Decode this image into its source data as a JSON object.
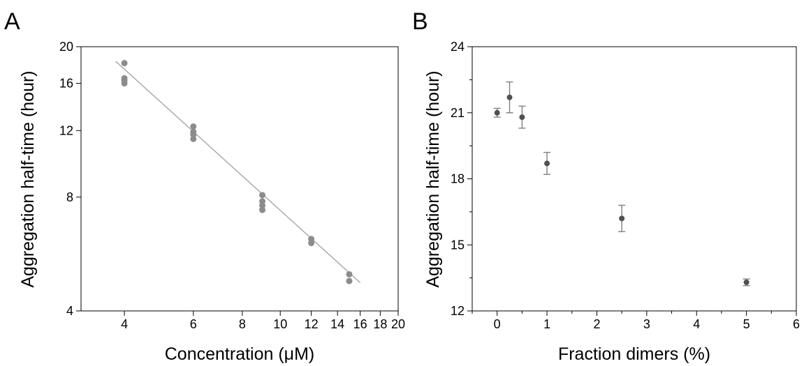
{
  "chart_data": [
    {
      "panel": "A",
      "type": "scatter",
      "xlabel": "Concentration (μM)",
      "ylabel": "Aggregation half-time (hour)",
      "x_scale": "log",
      "y_scale": "log",
      "xlim": [
        3.1,
        20
      ],
      "ylim": [
        4,
        20
      ],
      "x_ticks": [
        4,
        6,
        8,
        10,
        12,
        14,
        16,
        18,
        20
      ],
      "y_ticks": [
        4,
        8,
        12,
        16,
        20
      ],
      "grid": false,
      "colors": {
        "points": "#8c8c8c",
        "fit": "#a0a0a0"
      },
      "points": [
        {
          "x": 4,
          "y": 18.1
        },
        {
          "x": 4,
          "y": 16.5
        },
        {
          "x": 4,
          "y": 16.3
        },
        {
          "x": 4,
          "y": 16.0
        },
        {
          "x": 6,
          "y": 12.3
        },
        {
          "x": 6,
          "y": 11.9
        },
        {
          "x": 6,
          "y": 11.7
        },
        {
          "x": 6,
          "y": 11.4
        },
        {
          "x": 9,
          "y": 8.1
        },
        {
          "x": 9,
          "y": 7.8
        },
        {
          "x": 9,
          "y": 7.6
        },
        {
          "x": 9,
          "y": 7.4
        },
        {
          "x": 12,
          "y": 6.2
        },
        {
          "x": 12,
          "y": 6.05
        },
        {
          "x": 15,
          "y": 5.0
        },
        {
          "x": 15,
          "y": 4.8
        }
      ],
      "fit_line": [
        {
          "x": 3.8,
          "y": 18.3
        },
        {
          "x": 16,
          "y": 4.75
        }
      ]
    },
    {
      "panel": "B",
      "type": "scatter",
      "xlabel": "Fraction dimers (%)",
      "ylabel": "Aggregation half-time (hour)",
      "xlim": [
        -0.5,
        6
      ],
      "ylim": [
        12,
        24
      ],
      "x_ticks": [
        0,
        1,
        2,
        3,
        4,
        5,
        6
      ],
      "y_ticks": [
        12,
        15,
        18,
        21,
        24
      ],
      "grid": false,
      "colors": {
        "points": "#505050",
        "error_bars": "#808080"
      },
      "points": [
        {
          "x": 0,
          "y": 21.0,
          "err": 0.2
        },
        {
          "x": 0.25,
          "y": 21.7,
          "err": 0.7
        },
        {
          "x": 0.5,
          "y": 20.8,
          "err": 0.5
        },
        {
          "x": 1,
          "y": 18.7,
          "err": 0.5
        },
        {
          "x": 2.5,
          "y": 16.2,
          "err": 0.6
        },
        {
          "x": 5,
          "y": 13.3,
          "err": 0.15
        }
      ]
    }
  ],
  "panel_letters": [
    "A",
    "B"
  ]
}
